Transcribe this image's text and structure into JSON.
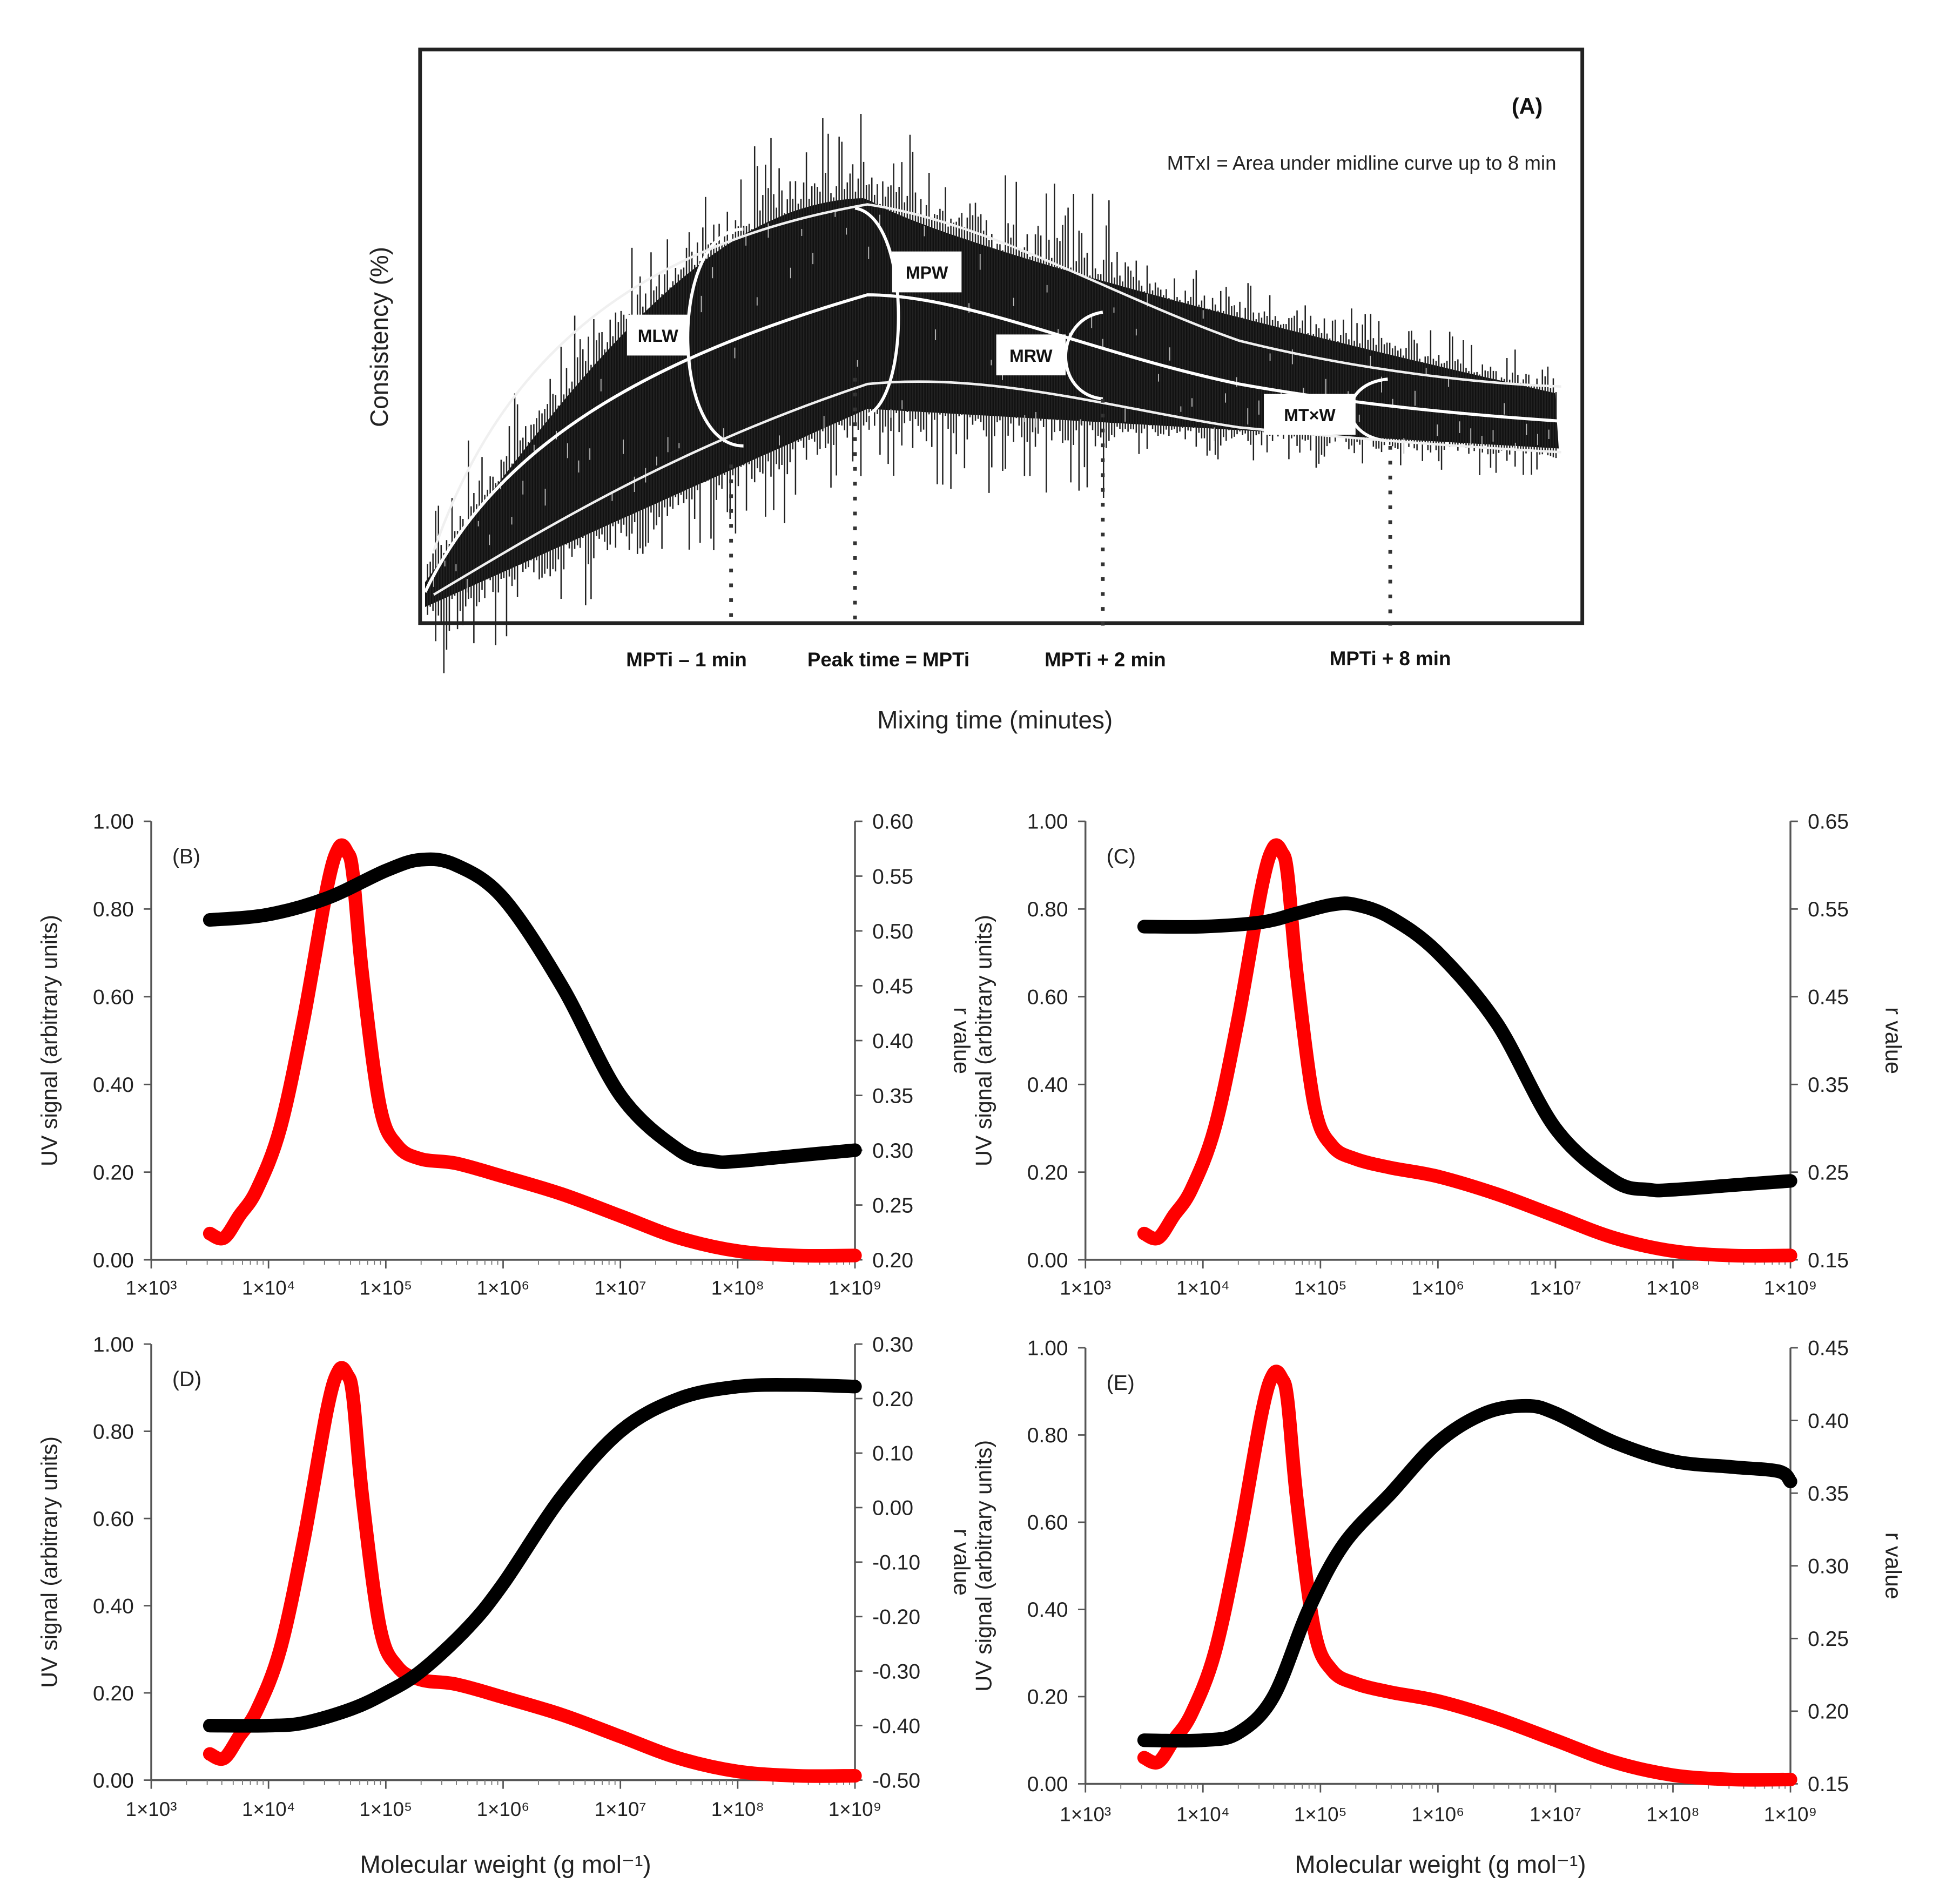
{
  "panel_a": {
    "letter": "(A)",
    "note": "MTxI  = Area under midline curve up to 8 min",
    "ylabel": "Consistency (%)",
    "xlabel": "Mixing time (minutes)",
    "boxes": [
      "MLW",
      "MPW",
      "MRW",
      "MT×W"
    ],
    "markers": [
      "MPTi – 1 min",
      "Peak time = MPTi",
      "MPTi + 2 min",
      "MPTi + 8 min"
    ]
  },
  "chart_data": [
    {
      "type": "line",
      "letter": "(B)",
      "xscale": "log",
      "xlim": [
        1000,
        1000000000
      ],
      "xticks": [
        "1×10³",
        "1×10⁴",
        "1×10⁵",
        "1×10⁶",
        "1×10⁷",
        "1×10⁸",
        "1×10⁹"
      ],
      "ylabel": "UV signal (arbitrary  units)",
      "ylim": [
        0,
        1
      ],
      "yticks": [
        "0.00",
        "0.20",
        "0.40",
        "0.60",
        "0.80",
        "1.00"
      ],
      "y2label": "r value",
      "y2lim": [
        0.2,
        0.6
      ],
      "y2ticks": [
        "0.20",
        "0.25",
        "0.30",
        "0.35",
        "0.40",
        "0.45",
        "0.50",
        "0.55",
        "0.60"
      ],
      "xlabel": "",
      "series": [
        {
          "name": "UV signal",
          "axis": "left",
          "color": "#ff0000",
          "x": [
            3.5,
            3.62,
            3.75,
            3.9,
            4.1,
            4.3,
            4.5,
            4.6,
            4.67,
            4.72,
            4.8,
            4.95,
            5.1,
            5.3,
            5.6,
            6,
            6.5,
            7,
            7.5,
            8,
            8.5,
            9
          ],
          "y": [
            0.06,
            0.05,
            0.1,
            0.16,
            0.3,
            0.55,
            0.85,
            0.94,
            0.93,
            0.88,
            0.65,
            0.35,
            0.26,
            0.23,
            0.22,
            0.19,
            0.15,
            0.1,
            0.05,
            0.02,
            0.01,
            0.01
          ]
        },
        {
          "name": "r value",
          "axis": "right",
          "color": "#000000",
          "x": [
            3.5,
            4,
            4.5,
            5,
            5.3,
            5.6,
            6,
            6.5,
            7,
            7.5,
            7.8,
            8,
            8.5,
            9
          ],
          "y": [
            0.51,
            0.515,
            0.53,
            0.555,
            0.565,
            0.56,
            0.53,
            0.45,
            0.35,
            0.3,
            0.29,
            0.29,
            0.295,
            0.3
          ]
        }
      ]
    },
    {
      "type": "line",
      "letter": "(C)",
      "xscale": "log",
      "xlim": [
        1000,
        1000000000
      ],
      "xticks": [
        "1×10³",
        "1×10⁴",
        "1×10⁵",
        "1×10⁶",
        "1×10⁷",
        "1×10⁸",
        "1×10⁹"
      ],
      "ylabel": "UV signal (arbitrary units)",
      "ylim": [
        0,
        1
      ],
      "yticks": [
        "0.00",
        "0.20",
        "0.40",
        "0.60",
        "0.80",
        "1.00"
      ],
      "y2label": "r value",
      "y2lim": [
        0.15,
        0.65
      ],
      "y2ticks": [
        "0.15",
        "0.25",
        "0.35",
        "0.45",
        "0.55",
        "0.65"
      ],
      "xlabel": "",
      "series": [
        {
          "name": "UV signal",
          "axis": "left",
          "color": "#ff0000",
          "x": [
            3.5,
            3.62,
            3.75,
            3.9,
            4.1,
            4.3,
            4.5,
            4.6,
            4.67,
            4.72,
            4.8,
            4.95,
            5.1,
            5.3,
            5.6,
            6,
            6.5,
            7,
            7.5,
            8,
            8.5,
            9
          ],
          "y": [
            0.06,
            0.05,
            0.1,
            0.16,
            0.3,
            0.55,
            0.85,
            0.94,
            0.93,
            0.88,
            0.65,
            0.35,
            0.26,
            0.23,
            0.21,
            0.19,
            0.15,
            0.1,
            0.05,
            0.02,
            0.01,
            0.01
          ]
        },
        {
          "name": "r value",
          "axis": "right",
          "color": "#000000",
          "x": [
            3.5,
            4,
            4.5,
            4.8,
            5.1,
            5.3,
            5.6,
            6,
            6.5,
            7,
            7.5,
            7.8,
            8,
            8.5,
            9
          ],
          "y": [
            0.53,
            0.53,
            0.535,
            0.545,
            0.555,
            0.555,
            0.54,
            0.5,
            0.42,
            0.3,
            0.24,
            0.23,
            0.23,
            0.235,
            0.24
          ]
        }
      ]
    },
    {
      "type": "line",
      "letter": "(D)",
      "xscale": "log",
      "xlim": [
        1000,
        1000000000
      ],
      "xticks": [
        "1×10³",
        "1×10⁴",
        "1×10⁵",
        "1×10⁶",
        "1×10⁷",
        "1×10⁸",
        "1×10⁹"
      ],
      "ylabel": "UV signal (arbitrary units)",
      "ylim": [
        0,
        1
      ],
      "yticks": [
        "0.00",
        "0.20",
        "0.40",
        "0.60",
        "0.80",
        "1.00"
      ],
      "y2label": "r value",
      "y2lim": [
        -0.5,
        0.3
      ],
      "y2ticks": [
        "-0.50",
        "-0.40",
        "-0.30",
        "-0.20",
        "-0.10",
        "0.00",
        "0.10",
        "0.20",
        "0.30"
      ],
      "xlabel": "Molecular weight (g mol⁻¹)",
      "series": [
        {
          "name": "UV signal",
          "axis": "left",
          "color": "#ff0000",
          "x": [
            3.5,
            3.62,
            3.75,
            3.9,
            4.1,
            4.3,
            4.5,
            4.6,
            4.67,
            4.72,
            4.8,
            4.95,
            5.1,
            5.3,
            5.6,
            6,
            6.5,
            7,
            7.5,
            8,
            8.5,
            9
          ],
          "y": [
            0.06,
            0.05,
            0.1,
            0.16,
            0.3,
            0.55,
            0.85,
            0.94,
            0.93,
            0.88,
            0.65,
            0.35,
            0.26,
            0.23,
            0.22,
            0.19,
            0.15,
            0.1,
            0.05,
            0.02,
            0.01,
            0.01
          ]
        },
        {
          "name": "r value",
          "axis": "right",
          "color": "#000000",
          "x": [
            3.5,
            4,
            4.3,
            4.7,
            5,
            5.3,
            5.7,
            6,
            6.5,
            7,
            7.5,
            8,
            8.5,
            9
          ],
          "y": [
            -0.4,
            -0.4,
            -0.395,
            -0.37,
            -0.34,
            -0.3,
            -0.22,
            -0.14,
            0.02,
            0.14,
            0.2,
            0.222,
            0.225,
            0.222
          ]
        }
      ]
    },
    {
      "type": "line",
      "letter": "(E)",
      "xscale": "log",
      "xlim": [
        1000,
        1000000000
      ],
      "xticks": [
        "1×10³",
        "1×10⁴",
        "1×10⁵",
        "1×10⁶",
        "1×10⁷",
        "1×10⁸",
        "1×10⁹"
      ],
      "ylabel": "UV signal (arbitrary units)",
      "ylim": [
        0,
        1
      ],
      "yticks": [
        "0.00",
        "0.20",
        "0.40",
        "0.60",
        "0.80",
        "1.00"
      ],
      "y2label": "r value",
      "y2lim": [
        0.15,
        0.45
      ],
      "y2ticks": [
        "0.15",
        "0.20",
        "0.25",
        "0.30",
        "0.35",
        "0.40",
        "0.45"
      ],
      "xlabel": "Molecular weight (g mol⁻¹)",
      "series": [
        {
          "name": "UV signal",
          "axis": "left",
          "color": "#ff0000",
          "x": [
            3.5,
            3.62,
            3.75,
            3.9,
            4.1,
            4.3,
            4.5,
            4.6,
            4.67,
            4.72,
            4.8,
            4.95,
            5.1,
            5.3,
            5.6,
            6,
            6.5,
            7,
            7.5,
            8,
            8.5,
            9
          ],
          "y": [
            0.06,
            0.05,
            0.1,
            0.16,
            0.3,
            0.55,
            0.85,
            0.94,
            0.93,
            0.88,
            0.65,
            0.35,
            0.26,
            0.23,
            0.21,
            0.19,
            0.15,
            0.1,
            0.05,
            0.02,
            0.01,
            0.01
          ]
        },
        {
          "name": "r value",
          "axis": "right",
          "color": "#000000",
          "x": [
            3.5,
            4,
            4.3,
            4.6,
            4.9,
            5.2,
            5.6,
            6,
            6.4,
            6.75,
            7,
            7.5,
            8,
            8.5,
            8.9,
            9
          ],
          "y": [
            0.18,
            0.18,
            0.185,
            0.21,
            0.27,
            0.315,
            0.35,
            0.385,
            0.405,
            0.41,
            0.405,
            0.385,
            0.372,
            0.368,
            0.365,
            0.358
          ]
        }
      ]
    }
  ]
}
